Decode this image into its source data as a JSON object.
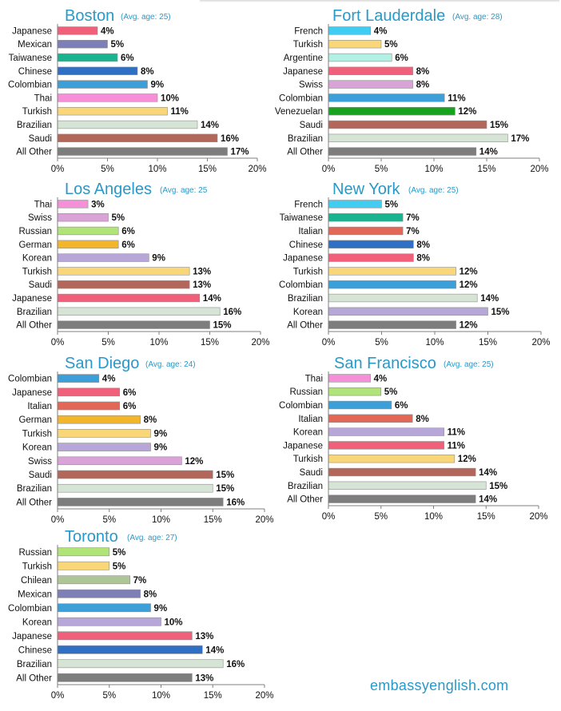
{
  "colors": {
    "accent": "#2899c8",
    "nationalities": {
      "Japanese": "#f0607a",
      "Mexican": "#7d7fb8",
      "Taiwanese": "#19b38f",
      "Chinese": "#2f70c4",
      "Colombian": "#3c9fd8",
      "Thai": "#f590d8",
      "Turkish": "#f9d678",
      "Brazilian": "#d5e4d5",
      "Saudi": "#b3675a",
      "All Other": "#7d7d7d",
      "French": "#41cdf2",
      "Argentine": "#b2f0e4",
      "Swiss": "#d9a3d8",
      "Venezuelan": "#16a31d",
      "Russian": "#b0e378",
      "German": "#f3b52a",
      "Korean": "#b7a6d8",
      "Italian": "#e26757",
      "Chilean": "#aec596"
    }
  },
  "footer": {
    "text": "embassyenglish.com"
  },
  "chart_data": [
    {
      "type": "bar",
      "city": "Boston",
      "avg_age_label": "(Avg. age: 25)",
      "categories": [
        "Japanese",
        "Mexican",
        "Taiwanese",
        "Chinese",
        "Colombian",
        "Thai",
        "Turkish",
        "Brazilian",
        "Saudi",
        "All Other"
      ],
      "values": [
        4,
        5,
        6,
        8,
        9,
        10,
        11,
        14,
        16,
        17
      ],
      "value_labels": [
        "4%",
        "5%",
        "6%",
        "8%",
        "9%",
        "10%",
        "11%",
        "14%",
        "16%",
        "17%"
      ],
      "xlim": [
        0,
        20
      ],
      "x_ticks": [
        "0%",
        "5%",
        "10%",
        "15%",
        "20%"
      ]
    },
    {
      "type": "bar",
      "city": "Fort Lauderdale",
      "avg_age_label": "(Avg. age: 28)",
      "categories": [
        "French",
        "Turkish",
        "Argentine",
        "Japanese",
        "Swiss",
        "Colombian",
        "Venezuelan",
        "Saudi",
        "Brazilian",
        "All Other"
      ],
      "values": [
        4,
        5,
        6,
        8,
        8,
        11,
        12,
        15,
        17,
        14
      ],
      "value_labels": [
        "4%",
        "5%",
        "6%",
        "8%",
        "8%",
        "11%",
        "12%",
        "15%",
        "17%",
        "14%"
      ],
      "xlim": [
        0,
        20
      ],
      "x_ticks": [
        "0%",
        "5%",
        "10%",
        "15%",
        "20%"
      ]
    },
    {
      "type": "bar",
      "city": "Los Angeles",
      "avg_age_label": "(Avg. age: 25",
      "categories": [
        "Thai",
        "Swiss",
        "Russian",
        "German",
        "Korean",
        "Turkish",
        "Saudi",
        "Japanese",
        "Brazilian",
        "All Other"
      ],
      "values": [
        3,
        5,
        6,
        6,
        9,
        13,
        13,
        14,
        16,
        15
      ],
      "value_labels": [
        "3%",
        "5%",
        "6%",
        "6%",
        "9%",
        "13%",
        "13%",
        "14%",
        "16%",
        "15%"
      ],
      "xlim": [
        0,
        20
      ],
      "x_ticks": [
        "0%",
        "5%",
        "10%",
        "15%",
        "20%"
      ]
    },
    {
      "type": "bar",
      "city": "New York",
      "avg_age_label": "(Avg. age: 25)",
      "categories": [
        "French",
        "Taiwanese",
        "Italian",
        "Chinese",
        "Japanese",
        "Turkish",
        "Colombian",
        "Brazilian",
        "Korean",
        "All Other"
      ],
      "values": [
        5,
        7,
        7,
        8,
        8,
        12,
        12,
        14,
        15,
        12
      ],
      "value_labels": [
        "5%",
        "7%",
        "7%",
        "8%",
        "8%",
        "12%",
        "12%",
        "14%",
        "15%",
        "12%"
      ],
      "xlim": [
        0,
        20
      ],
      "x_ticks": [
        "0%",
        "5%",
        "10%",
        "15%",
        "20%"
      ]
    },
    {
      "type": "bar",
      "city": "San Diego",
      "avg_age_label": "(Avg. age: 24)",
      "categories": [
        "Colombian",
        "Japanese",
        "Italian",
        "German",
        "Turkish",
        "Korean",
        "Swiss",
        "Saudi",
        "Brazilian",
        "All Other"
      ],
      "values": [
        4,
        6,
        6,
        8,
        9,
        9,
        12,
        15,
        15,
        16
      ],
      "value_labels": [
        "4%",
        "6%",
        "6%",
        "8%",
        "9%",
        "9%",
        "12%",
        "15%",
        "15%",
        "16%"
      ],
      "xlim": [
        0,
        20
      ],
      "x_ticks": [
        "0%",
        "5%",
        "10%",
        "15%",
        "20%"
      ]
    },
    {
      "type": "bar",
      "city": "San Francisco",
      "avg_age_label": "(Avg. age: 25)",
      "categories": [
        "Thai",
        "Russian",
        "Colombian",
        "Italian",
        "Korean",
        "Japanese",
        "Turkish",
        "Saudi",
        "Brazilian",
        "All Other"
      ],
      "values": [
        4,
        5,
        6,
        8,
        11,
        11,
        12,
        14,
        15,
        14
      ],
      "value_labels": [
        "4%",
        "5%",
        "6%",
        "8%",
        "11%",
        "11%",
        "12%",
        "14%",
        "15%",
        "14%"
      ],
      "xlim": [
        0,
        20
      ],
      "x_ticks": [
        "0%",
        "5%",
        "10%",
        "15%",
        "20%"
      ]
    },
    {
      "type": "bar",
      "city": "Toronto",
      "avg_age_label": "(Avg. age: 27)",
      "categories": [
        "Russian",
        "Turkish",
        "Chilean",
        "Mexican",
        "Colombian",
        "Korean",
        "Japanese",
        "Chinese",
        "Brazilian",
        "All Other"
      ],
      "values": [
        5,
        5,
        7,
        8,
        9,
        10,
        13,
        14,
        16,
        13
      ],
      "value_labels": [
        "5%",
        "5%",
        "7%",
        "8%",
        "9%",
        "10%",
        "13%",
        "14%",
        "16%",
        "13%"
      ],
      "xlim": [
        0,
        20
      ],
      "x_ticks": [
        "0%",
        "5%",
        "10%",
        "15%",
        "20%"
      ]
    }
  ]
}
